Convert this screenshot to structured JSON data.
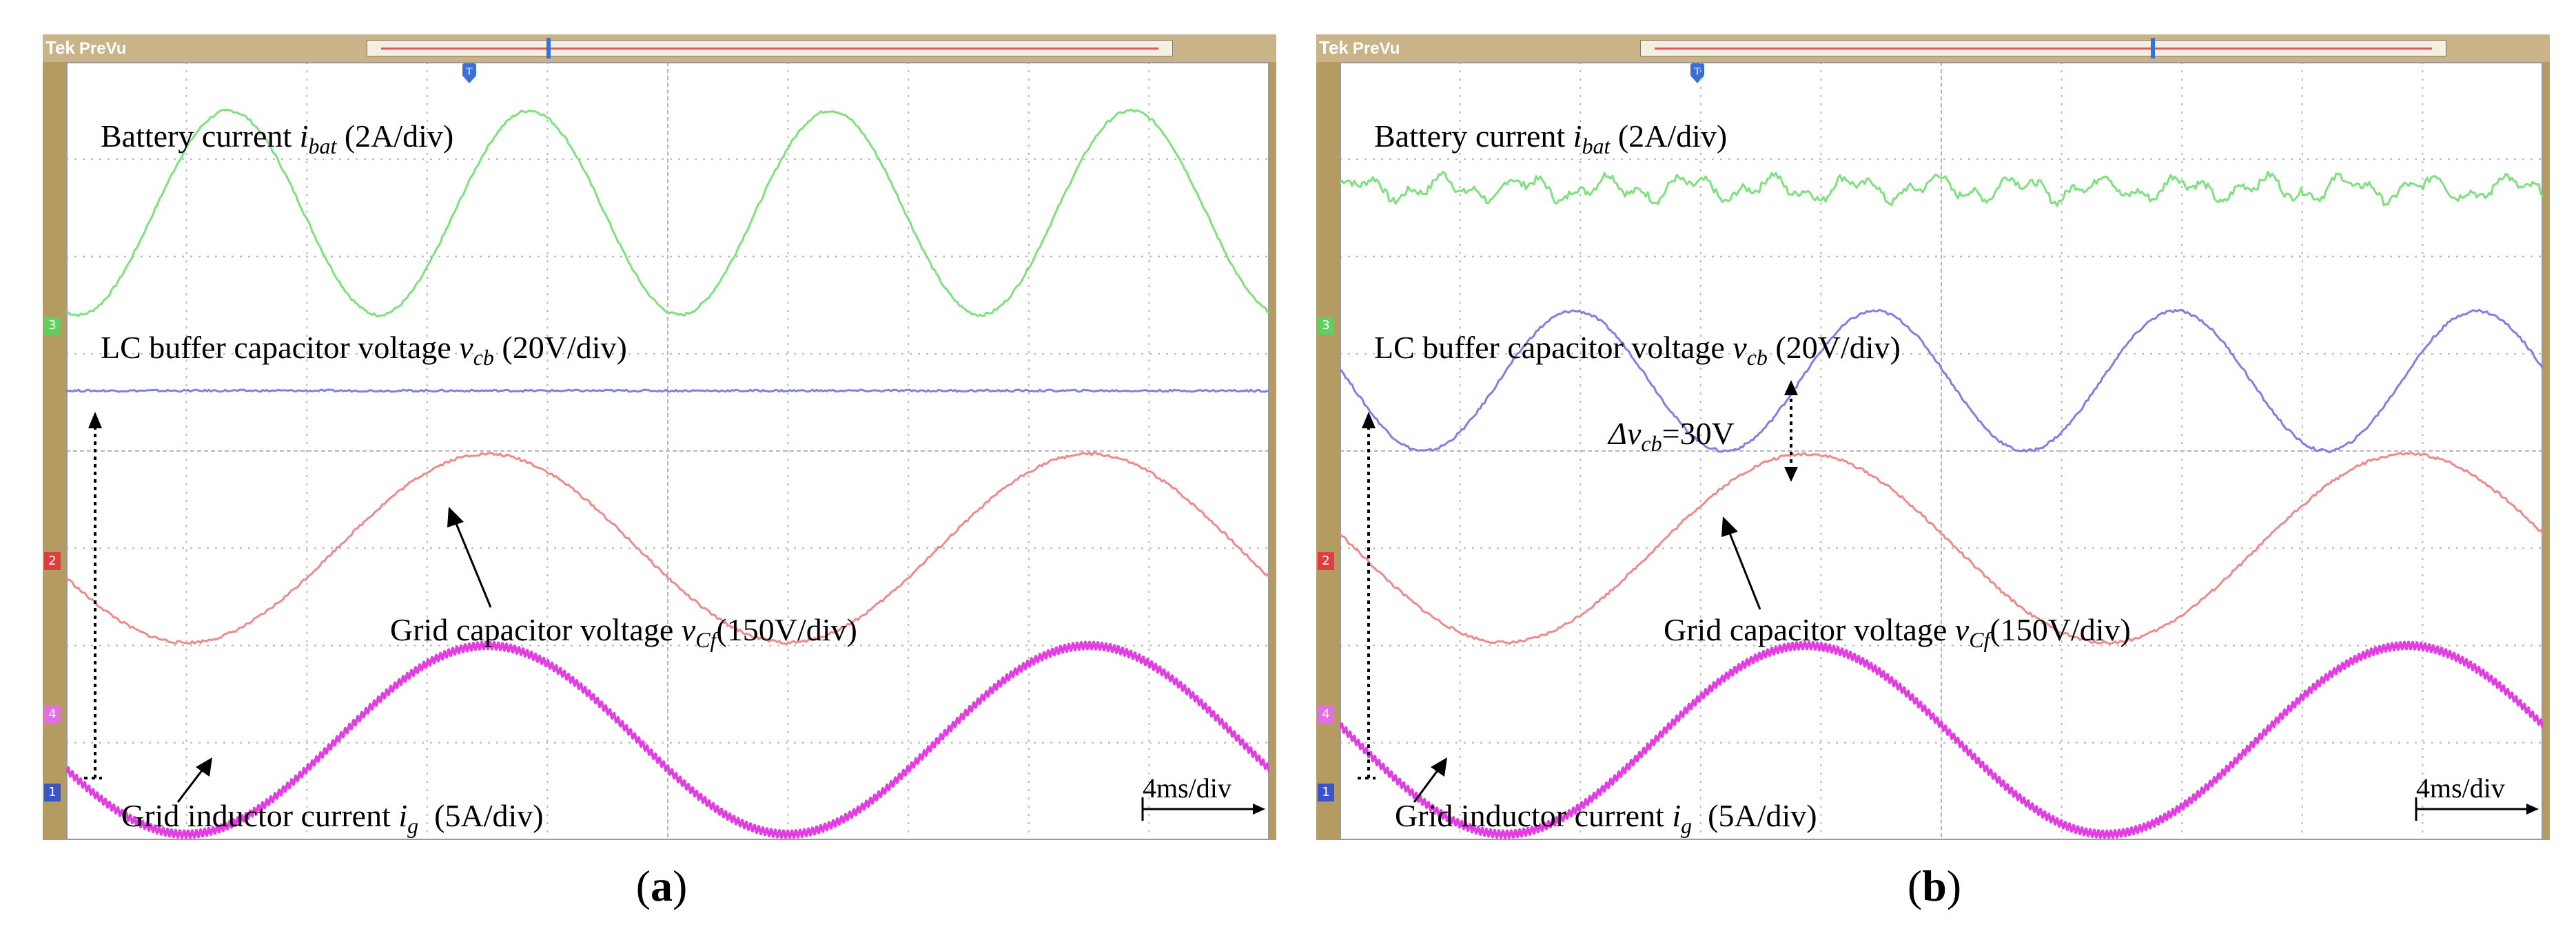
{
  "figure": {
    "panels": [
      {
        "id": "a",
        "caption": "a",
        "scope_brand": "Tek",
        "scope_mode": "PreVu",
        "channel_badges": [
          "3",
          "2",
          "4",
          "1"
        ],
        "labels": {
          "battery": {
            "prefix": "Battery current ",
            "var": "i",
            "sub": "bat",
            "suffix": " (2A/div)"
          },
          "buffer": {
            "prefix": "LC buffer capacitor voltage ",
            "var": "v",
            "sub": "cb",
            "suffix": " (20V/div)"
          },
          "grid_cap": {
            "prefix": "Grid capacitor voltage ",
            "var": "v",
            "sub": "Cf",
            "suffix": "(150V/div)"
          },
          "grid_ind": {
            "prefix": "Grid inductor current ",
            "var": "i",
            "sub": "g",
            "suffix": "  (5A/div)"
          }
        },
        "timebase": "4ms/div",
        "delta_annotation": null
      },
      {
        "id": "b",
        "caption": "b",
        "scope_brand": "Tek",
        "scope_mode": "PreVu",
        "channel_badges": [
          "3",
          "2",
          "4",
          "1"
        ],
        "labels": {
          "battery": {
            "prefix": "Battery current ",
            "var": "i",
            "sub": "bat",
            "suffix": " (2A/div)"
          },
          "buffer": {
            "prefix": "LC buffer capacitor voltage ",
            "var": "v",
            "sub": "cb",
            "suffix": " (20V/div)"
          },
          "grid_cap": {
            "prefix": "Grid capacitor voltage ",
            "var": "v",
            "sub": "Cf",
            "suffix": "(150V/div)"
          },
          "grid_ind": {
            "prefix": "Grid inductor current ",
            "var": "i",
            "sub": "g",
            "suffix": "  (5A/div)"
          }
        },
        "timebase": "4ms/div",
        "delta_annotation": {
          "prefix": "Δv",
          "sub": "cb",
          "suffix": "=30V"
        }
      }
    ],
    "colors": {
      "battery": "#7ee07e",
      "buffer": "#7f7fe6",
      "grid_cap": "#ee8a8a",
      "grid_ind": "#e23ce2",
      "grid": "#b8b8b8",
      "bezel": "#b39b62"
    }
  },
  "chart_data": [
    {
      "type": "line",
      "title": "(a)",
      "xlabel": "time (4ms/div)",
      "x_divisions": 10,
      "y_divisions": 8,
      "x_range_ms": [
        0,
        40
      ],
      "series": [
        {
          "name": "Battery current i_bat (2A/div)",
          "unit_per_div": "2A",
          "shape": "sine",
          "period_ms": 10,
          "amplitude_div": 1.05,
          "offset_div": 6.45,
          "phase_ms": 2.9
        },
        {
          "name": "LC buffer capacitor voltage v_cb (20V/div)",
          "unit_per_div": "20V",
          "shape": "flat",
          "offset_div": 4.62,
          "ripple_div": 0.02
        },
        {
          "name": "Grid capacitor voltage v_Cf (150V/div)",
          "unit_per_div": "150V",
          "shape": "sine",
          "period_ms": 20,
          "amplitude_div": 0.97,
          "offset_div": 3.0,
          "phase_ms": 9.0
        },
        {
          "name": "Grid inductor current i_g (5A/div)",
          "unit_per_div": "5A",
          "shape": "sine",
          "period_ms": 20,
          "amplitude_div": 0.97,
          "offset_div": 1.03,
          "phase_ms": 9.0
        }
      ]
    },
    {
      "type": "line",
      "title": "(b)",
      "xlabel": "time (4ms/div)",
      "x_divisions": 10,
      "y_divisions": 8,
      "x_range_ms": [
        0,
        40
      ],
      "series": [
        {
          "name": "Battery current i_bat (2A/div)",
          "unit_per_div": "2A",
          "shape": "ripple",
          "offset_div": 6.7,
          "ripple_div": 0.15
        },
        {
          "name": "LC buffer capacitor voltage v_cb (20V/div)",
          "unit_per_div": "20V",
          "shape": "sine",
          "period_ms": 10,
          "amplitude_div": 0.72,
          "offset_div": 4.72,
          "phase_ms": 5.3
        },
        {
          "name": "Grid capacitor voltage v_Cf (150V/div)",
          "unit_per_div": "150V",
          "shape": "sine",
          "period_ms": 20,
          "amplitude_div": 0.97,
          "offset_div": 3.0,
          "phase_ms": 10.5
        },
        {
          "name": "Grid inductor current i_g (5A/div)",
          "unit_per_div": "5A",
          "shape": "sine",
          "period_ms": 20,
          "amplitude_div": 0.97,
          "offset_div": 1.03,
          "phase_ms": 10.5
        }
      ],
      "annotations": [
        {
          "text": "Δv_cb=30V"
        }
      ]
    }
  ]
}
